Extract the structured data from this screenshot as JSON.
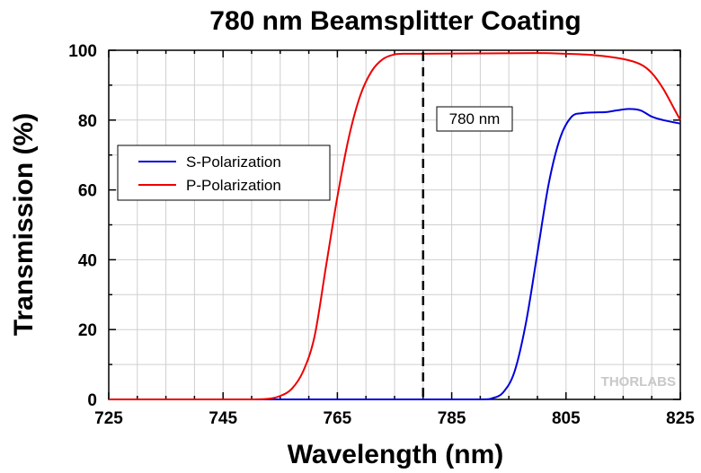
{
  "chart_data": {
    "type": "line",
    "title": "780 nm Beamsplitter Coating",
    "xlabel": "Wavelength (nm)",
    "ylabel": "Transmission (%)",
    "xlim": [
      725,
      825
    ],
    "ylim": [
      0,
      100
    ],
    "xticks": [
      725,
      745,
      765,
      785,
      805,
      825
    ],
    "yticks": [
      0,
      20,
      40,
      60,
      80,
      100
    ],
    "grid": true,
    "legend_position": "left-middle",
    "series": [
      {
        "name": "S-Polarization",
        "color": "#0000dd",
        "x": [
          725,
          760,
          780,
          790,
          792,
          794,
          796,
          798,
          800,
          802,
          804,
          806,
          808,
          810,
          812,
          814,
          816,
          818,
          820,
          822,
          825
        ],
        "y": [
          0,
          0,
          0,
          0,
          0.3,
          2,
          8,
          22,
          42,
          62,
          75,
          81,
          82,
          82.2,
          82.3,
          82.8,
          83.2,
          82.8,
          81,
          80,
          79
        ]
      },
      {
        "name": "P-Polarization",
        "color": "#ee0000",
        "x": [
          725,
          745,
          750,
          753,
          755,
          757,
          759,
          761,
          763,
          765,
          767,
          769,
          771,
          773,
          775,
          777,
          780,
          790,
          800,
          805,
          810,
          815,
          818,
          820,
          822,
          824,
          825
        ],
        "y": [
          0,
          0,
          0,
          0.2,
          1,
          3,
          8,
          18,
          38,
          58,
          75,
          87,
          94,
          97.5,
          98.8,
          99,
          99,
          99.1,
          99.2,
          99,
          98.6,
          97.5,
          96,
          93.5,
          89,
          83,
          80
        ]
      }
    ],
    "annotations": [
      {
        "type": "vline",
        "x": 780,
        "style": "dashed",
        "label": "780 nm",
        "label_y": 80
      }
    ],
    "logo": "THORLABS"
  }
}
